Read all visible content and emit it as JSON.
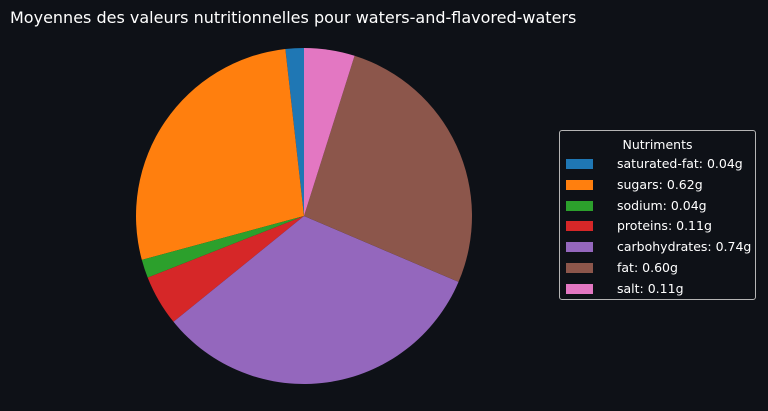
{
  "chart_data": {
    "type": "pie",
    "title": "Moyennes des valeurs nutritionnelles pour waters-and-flavored-waters",
    "legend_title": "Nutriments",
    "legend_position": "right",
    "slices": [
      {
        "name": "saturated-fat",
        "value": 0.04,
        "label": "saturated-fat: 0.04g",
        "color": "#1f77b4"
      },
      {
        "name": "sugars",
        "value": 0.62,
        "label": "sugars: 0.62g",
        "color": "#ff7f0e"
      },
      {
        "name": "sodium",
        "value": 0.04,
        "label": "sodium: 0.04g",
        "color": "#2ca02c"
      },
      {
        "name": "proteins",
        "value": 0.11,
        "label": "proteins: 0.11g",
        "color": "#d62728"
      },
      {
        "name": "carbohydrates",
        "value": 0.74,
        "label": "carbohydrates: 0.74g",
        "color": "#9467bd"
      },
      {
        "name": "fat",
        "value": 0.6,
        "label": "fat: 0.60g",
        "color": "#8c564b"
      },
      {
        "name": "salt",
        "value": 0.11,
        "label": "salt: 0.11g",
        "color": "#e377c2"
      }
    ]
  }
}
